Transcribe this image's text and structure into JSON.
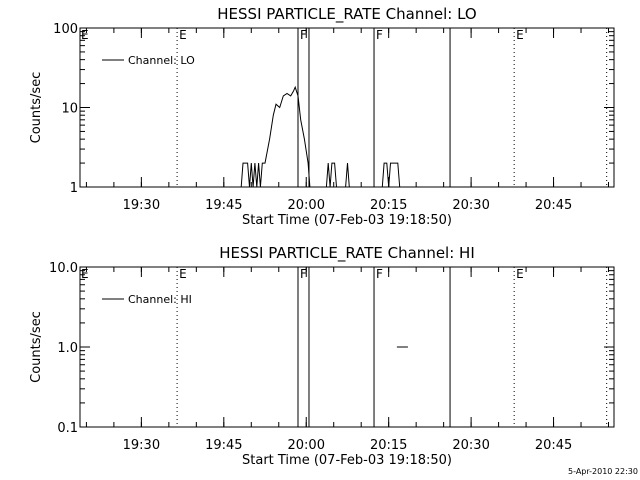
{
  "footer": {
    "date_stamp": "5-Apr-2010 22:30"
  },
  "chart_data": [
    {
      "type": "line",
      "title": "HESSI PARTICLE_RATE Channel: LO",
      "xlabel": "Start Time (07-Feb-03 19:18:50)",
      "ylabel": "Counts/sec",
      "y_scale": "log",
      "ylim": [
        1,
        100
      ],
      "y_ticks": [
        1,
        10,
        100
      ],
      "y_tick_labels": [
        "1",
        "10",
        "100"
      ],
      "xlim": [
        "19:18:50",
        "20:56:00"
      ],
      "x_ticks": [
        "19:30",
        "19:45",
        "20:00",
        "20:15",
        "20:30",
        "20:45"
      ],
      "legend": {
        "label": "Channel: LO",
        "placement": "top-left"
      },
      "markers": [
        {
          "time": "19:36:30",
          "style": "dotted",
          "label": "E"
        },
        {
          "time": "19:58:30",
          "style": "solid",
          "label": "F"
        },
        {
          "time": "20:00:30",
          "style": "solid",
          "label": ""
        },
        {
          "time": "20:12:20",
          "style": "solid",
          "label": "F"
        },
        {
          "time": "20:26:10",
          "style": "solid",
          "label": ""
        },
        {
          "time": "20:37:50",
          "style": "dotted",
          "label": "E"
        },
        {
          "time": "20:54:40",
          "style": "dotted",
          "label": ""
        }
      ],
      "corner_label": "E",
      "series": [
        {
          "name": "Channel: LO",
          "segments": [
            [
              [
                "19:48:10",
                1
              ],
              [
                "19:48:30",
                2
              ],
              [
                "19:49:20",
                2
              ],
              [
                "19:49:40",
                1
              ],
              [
                "19:50:00",
                2
              ],
              [
                "19:50:20",
                1
              ],
              [
                "19:50:40",
                2
              ],
              [
                "19:51:00",
                1
              ],
              [
                "19:51:20",
                2
              ],
              [
                "19:51:40",
                1
              ],
              [
                "19:52:00",
                2
              ],
              [
                "19:52:30",
                2
              ],
              [
                "19:53:20",
                4
              ],
              [
                "19:54:00",
                8
              ],
              [
                "19:54:30",
                11
              ],
              [
                "19:55:10",
                10
              ],
              [
                "19:55:50",
                14
              ],
              [
                "19:56:30",
                15
              ],
              [
                "19:57:10",
                14
              ],
              [
                "19:57:40",
                16
              ],
              [
                "19:58:00",
                18
              ],
              [
                "19:58:30",
                14
              ],
              [
                "19:59:00",
                7
              ],
              [
                "19:59:40",
                4
              ],
              [
                "20:00:20",
                2
              ],
              [
                "20:00:40",
                1
              ]
            ],
            [
              [
                "20:03:40",
                1
              ],
              [
                "20:04:00",
                2
              ],
              [
                "20:04:20",
                1
              ],
              [
                "20:04:40",
                2
              ],
              [
                "20:05:10",
                2
              ],
              [
                "20:05:30",
                1
              ]
            ],
            [
              [
                "20:07:10",
                1
              ],
              [
                "20:07:30",
                2
              ],
              [
                "20:07:50",
                1
              ]
            ],
            [
              [
                "20:13:50",
                1
              ],
              [
                "20:14:10",
                2
              ],
              [
                "20:14:40",
                2
              ],
              [
                "20:15:00",
                1
              ],
              [
                "20:15:20",
                2
              ],
              [
                "20:16:40",
                2
              ],
              [
                "20:17:00",
                1
              ]
            ]
          ]
        }
      ]
    },
    {
      "type": "line",
      "title": "HESSI PARTICLE_RATE Channel: HI",
      "xlabel": "Start Time (07-Feb-03 19:18:50)",
      "ylabel": "Counts/sec",
      "y_scale": "log",
      "ylim": [
        0.1,
        10
      ],
      "y_ticks": [
        0.1,
        1,
        10
      ],
      "y_tick_labels": [
        "0.1",
        "1.0",
        "10.0"
      ],
      "xlim": [
        "19:18:50",
        "20:56:00"
      ],
      "x_ticks": [
        "19:30",
        "19:45",
        "20:00",
        "20:15",
        "20:30",
        "20:45"
      ],
      "legend": {
        "label": "Channel: HI",
        "placement": "top-left"
      },
      "markers": [
        {
          "time": "19:36:30",
          "style": "dotted",
          "label": "E"
        },
        {
          "time": "19:58:30",
          "style": "solid",
          "label": "F"
        },
        {
          "time": "20:00:30",
          "style": "solid",
          "label": ""
        },
        {
          "time": "20:12:20",
          "style": "solid",
          "label": "F"
        },
        {
          "time": "20:26:10",
          "style": "solid",
          "label": ""
        },
        {
          "time": "20:37:50",
          "style": "dotted",
          "label": "E"
        },
        {
          "time": "20:54:40",
          "style": "dotted",
          "label": ""
        }
      ],
      "corner_label": "E",
      "series": [
        {
          "name": "Channel: HI",
          "segments": [
            [
              [
                "20:16:30",
                1
              ],
              [
                "20:18:30",
                1
              ]
            ]
          ]
        }
      ]
    }
  ]
}
